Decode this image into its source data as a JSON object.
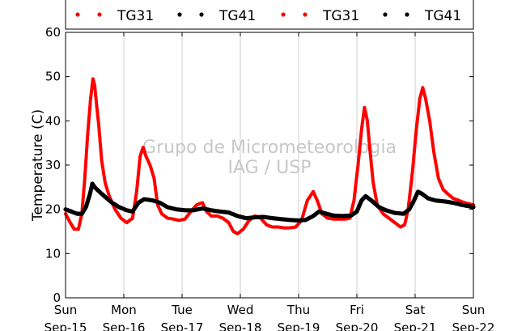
{
  "chart_data": {
    "type": "scatter",
    "title": "",
    "xlabel": "",
    "ylabel": "Temperature (C)",
    "ylim": [
      0,
      60
    ],
    "yticks": [
      0,
      10,
      20,
      30,
      40,
      50,
      60
    ],
    "xlim": [
      0,
      7
    ],
    "x_unit": "days since Sun Sep-15 00:00",
    "xticks": [
      {
        "day": "Sun",
        "date": "Sep-15"
      },
      {
        "day": "Mon",
        "date": "Sep-16"
      },
      {
        "day": "Tue",
        "date": "Sep-17"
      },
      {
        "day": "Wed",
        "date": "Sep-18"
      },
      {
        "day": "Thu",
        "date": "Sep-19"
      },
      {
        "day": "Fri",
        "date": "Sep-20"
      },
      {
        "day": "Sat",
        "date": "Sep-21"
      },
      {
        "day": "Sun",
        "date": "Sep-22"
      }
    ],
    "grid": "vertical",
    "legend_position": "top",
    "legend": [
      {
        "label": "TG31",
        "color": "#ff0000"
      },
      {
        "label": "TG41",
        "color": "#000000"
      },
      {
        "label": "TG31",
        "color": "#ff0000"
      },
      {
        "label": "TG41",
        "color": "#000000"
      }
    ],
    "watermark": [
      "Grupo de Micrometeorologia",
      "IAG / USP"
    ],
    "series": [
      {
        "name": "TG31",
        "color": "#ff0000",
        "points": [
          [
            0.0,
            19.0
          ],
          [
            0.08,
            17.0
          ],
          [
            0.15,
            15.5
          ],
          [
            0.22,
            15.5
          ],
          [
            0.28,
            19.0
          ],
          [
            0.33,
            27.0
          ],
          [
            0.38,
            37.0
          ],
          [
            0.43,
            45.0
          ],
          [
            0.47,
            49.5
          ],
          [
            0.5,
            48.0
          ],
          [
            0.53,
            44.0
          ],
          [
            0.57,
            39.0
          ],
          [
            0.62,
            31.0
          ],
          [
            0.68,
            26.0
          ],
          [
            0.75,
            23.0
          ],
          [
            0.85,
            20.0
          ],
          [
            0.95,
            18.0
          ],
          [
            1.05,
            17.0
          ],
          [
            1.15,
            18.0
          ],
          [
            1.22,
            24.0
          ],
          [
            1.28,
            32.0
          ],
          [
            1.33,
            34.0
          ],
          [
            1.38,
            32.0
          ],
          [
            1.45,
            30.0
          ],
          [
            1.52,
            27.0
          ],
          [
            1.58,
            21.0
          ],
          [
            1.65,
            19.0
          ],
          [
            1.75,
            18.0
          ],
          [
            1.85,
            17.8
          ],
          [
            1.95,
            17.5
          ],
          [
            2.05,
            17.8
          ],
          [
            2.15,
            19.5
          ],
          [
            2.25,
            21.0
          ],
          [
            2.35,
            21.5
          ],
          [
            2.42,
            19.5
          ],
          [
            2.5,
            18.5
          ],
          [
            2.6,
            18.5
          ],
          [
            2.7,
            18.0
          ],
          [
            2.8,
            17.0
          ],
          [
            2.88,
            15.0
          ],
          [
            2.95,
            14.5
          ],
          [
            3.05,
            15.5
          ],
          [
            3.15,
            17.5
          ],
          [
            3.25,
            18.5
          ],
          [
            3.35,
            18.0
          ],
          [
            3.45,
            16.5
          ],
          [
            3.55,
            16.0
          ],
          [
            3.65,
            16.0
          ],
          [
            3.75,
            15.8
          ],
          [
            3.85,
            15.8
          ],
          [
            3.95,
            16.0
          ],
          [
            4.05,
            17.5
          ],
          [
            4.15,
            22.0
          ],
          [
            4.25,
            24.0
          ],
          [
            4.32,
            22.0
          ],
          [
            4.4,
            19.0
          ],
          [
            4.5,
            18.0
          ],
          [
            4.6,
            17.8
          ],
          [
            4.7,
            17.8
          ],
          [
            4.8,
            17.8
          ],
          [
            4.88,
            18.0
          ],
          [
            4.95,
            22.0
          ],
          [
            5.02,
            30.0
          ],
          [
            5.08,
            38.0
          ],
          [
            5.13,
            43.0
          ],
          [
            5.18,
            40.0
          ],
          [
            5.22,
            34.0
          ],
          [
            5.28,
            26.0
          ],
          [
            5.35,
            21.0
          ],
          [
            5.45,
            19.0
          ],
          [
            5.55,
            18.0
          ],
          [
            5.65,
            17.0
          ],
          [
            5.75,
            16.0
          ],
          [
            5.82,
            16.5
          ],
          [
            5.88,
            20.0
          ],
          [
            5.95,
            28.0
          ],
          [
            6.02,
            38.0
          ],
          [
            6.08,
            45.0
          ],
          [
            6.13,
            47.5
          ],
          [
            6.18,
            45.0
          ],
          [
            6.25,
            40.0
          ],
          [
            6.32,
            33.0
          ],
          [
            6.4,
            27.0
          ],
          [
            6.48,
            24.5
          ],
          [
            6.56,
            23.5
          ],
          [
            6.65,
            22.5
          ],
          [
            6.75,
            22.0
          ],
          [
            6.85,
            21.5
          ],
          [
            7.0,
            21.0
          ]
        ]
      },
      {
        "name": "TG41",
        "color": "#000000",
        "points": [
          [
            0.0,
            20.0
          ],
          [
            0.1,
            19.5
          ],
          [
            0.2,
            19.0
          ],
          [
            0.28,
            19.0
          ],
          [
            0.35,
            20.5
          ],
          [
            0.42,
            23.5
          ],
          [
            0.46,
            25.8
          ],
          [
            0.5,
            25.0
          ],
          [
            0.58,
            24.0
          ],
          [
            0.68,
            22.8
          ],
          [
            0.8,
            21.5
          ],
          [
            0.92,
            20.5
          ],
          [
            1.05,
            19.8
          ],
          [
            1.15,
            19.5
          ],
          [
            1.25,
            21.5
          ],
          [
            1.35,
            22.3
          ],
          [
            1.5,
            22.0
          ],
          [
            1.62,
            21.5
          ],
          [
            1.75,
            20.5
          ],
          [
            1.9,
            20.0
          ],
          [
            2.05,
            19.8
          ],
          [
            2.2,
            19.8
          ],
          [
            2.35,
            20.2
          ],
          [
            2.5,
            19.8
          ],
          [
            2.65,
            19.5
          ],
          [
            2.8,
            19.3
          ],
          [
            2.95,
            18.5
          ],
          [
            3.1,
            18.0
          ],
          [
            3.25,
            18.2
          ],
          [
            3.4,
            18.3
          ],
          [
            3.55,
            18.0
          ],
          [
            3.7,
            17.8
          ],
          [
            3.85,
            17.6
          ],
          [
            4.0,
            17.5
          ],
          [
            4.12,
            17.6
          ],
          [
            4.25,
            18.5
          ],
          [
            4.35,
            19.5
          ],
          [
            4.48,
            19.0
          ],
          [
            4.6,
            18.6
          ],
          [
            4.75,
            18.5
          ],
          [
            4.9,
            18.6
          ],
          [
            5.0,
            19.5
          ],
          [
            5.08,
            22.0
          ],
          [
            5.15,
            23.0
          ],
          [
            5.25,
            22.0
          ],
          [
            5.38,
            20.5
          ],
          [
            5.5,
            19.8
          ],
          [
            5.65,
            19.2
          ],
          [
            5.8,
            19.0
          ],
          [
            5.9,
            20.0
          ],
          [
            5.98,
            22.0
          ],
          [
            6.05,
            24.0
          ],
          [
            6.12,
            23.5
          ],
          [
            6.22,
            22.5
          ],
          [
            6.35,
            22.0
          ],
          [
            6.5,
            21.8
          ],
          [
            6.65,
            21.5
          ],
          [
            6.8,
            21.0
          ],
          [
            7.0,
            20.5
          ]
        ]
      }
    ]
  }
}
